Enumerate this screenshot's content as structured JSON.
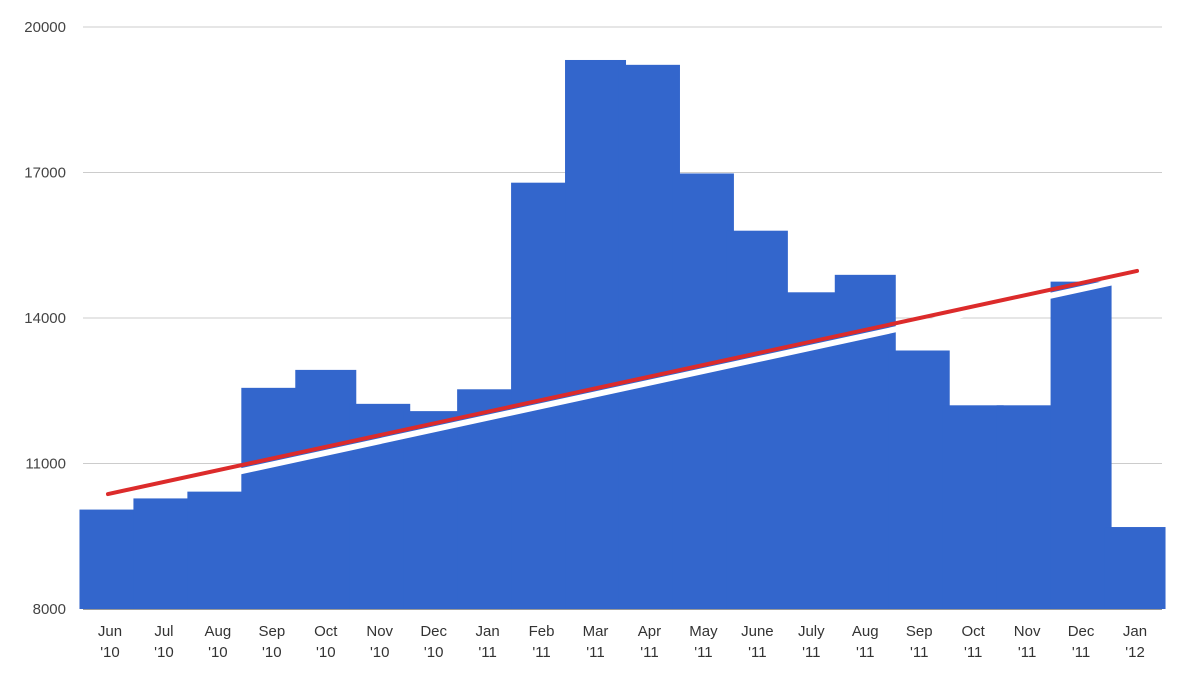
{
  "chart_data": {
    "type": "bar",
    "title": "",
    "xlabel": "",
    "ylabel": "",
    "ylim": [
      8000,
      20000
    ],
    "yticks": [
      8000,
      11000,
      14000,
      17000,
      20000
    ],
    "grid": true,
    "legend": "none",
    "categories": [
      [
        "Jun",
        "'10"
      ],
      [
        "Jul",
        "'10"
      ],
      [
        "Aug",
        "'10"
      ],
      [
        "Sep",
        "'10"
      ],
      [
        "Oct",
        "'10"
      ],
      [
        "Nov",
        "'10"
      ],
      [
        "Dec",
        "'10"
      ],
      [
        "Jan",
        "'11"
      ],
      [
        "Feb",
        "'11"
      ],
      [
        "Mar",
        "'11"
      ],
      [
        "Apr",
        "'11"
      ],
      [
        "May",
        "'11"
      ],
      [
        "June",
        "'11"
      ],
      [
        "July",
        "'11"
      ],
      [
        "Aug",
        "'11"
      ],
      [
        "Sep",
        "'11"
      ],
      [
        "Oct",
        "'11"
      ],
      [
        "Nov",
        "'11"
      ],
      [
        "Dec",
        "'11"
      ],
      [
        "Jan",
        "'12"
      ]
    ],
    "series": [
      {
        "values": [
          10050,
          10280,
          10420,
          12560,
          12930,
          12230,
          12080,
          12530,
          16790,
          19320,
          19220,
          16980,
          15800,
          14530,
          14890,
          13330,
          12200,
          12200,
          14750,
          9690
        ]
      }
    ],
    "trendline": {
      "start": 10370,
      "end": 14970
    },
    "colors": {
      "bar": "#3366cc",
      "trendline": "#dc2b2b",
      "trendline_halo": "#ffffff"
    }
  }
}
